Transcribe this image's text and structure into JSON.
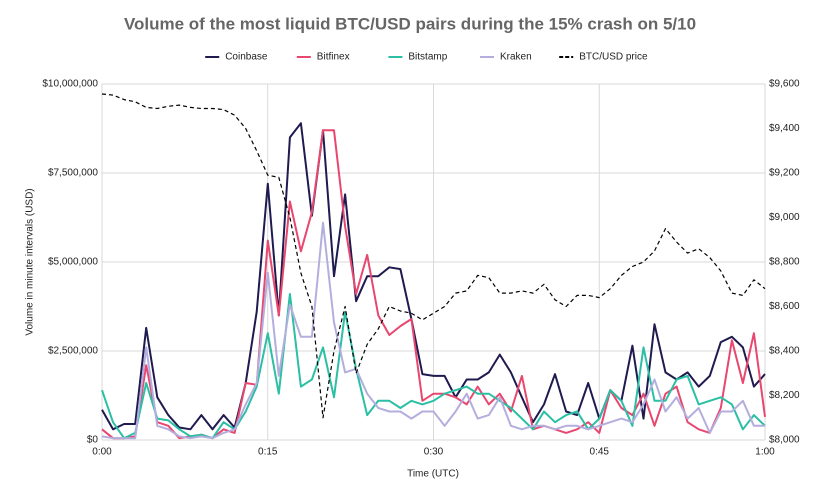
{
  "chart_data": {
    "type": "line",
    "title": "Volume of the most liquid BTC/USD pairs during the 15% crash on 5/10",
    "xlabel": "Time (UTC)",
    "ylabel": "Volume in minute intervals (USD)",
    "x": [
      0,
      1,
      2,
      3,
      4,
      5,
      6,
      7,
      8,
      9,
      10,
      11,
      12,
      13,
      14,
      15,
      16,
      17,
      18,
      19,
      20,
      21,
      22,
      23,
      24,
      25,
      26,
      27,
      28,
      29,
      30,
      31,
      32,
      33,
      34,
      35,
      36,
      37,
      38,
      39,
      40,
      41,
      42,
      43,
      44,
      45,
      46,
      47,
      48,
      49,
      50,
      51,
      52,
      53,
      54,
      55,
      56,
      57,
      58,
      59,
      60
    ],
    "xlim": [
      0,
      60
    ],
    "xticks": [
      {
        "value": 0,
        "label": "0:00"
      },
      {
        "value": 15,
        "label": "0:15"
      },
      {
        "value": 30,
        "label": "0:30"
      },
      {
        "value": 45,
        "label": "0:45"
      },
      {
        "value": 60,
        "label": "1:00"
      }
    ],
    "ylim": [
      0,
      10000000
    ],
    "yticks": [
      {
        "value": 0,
        "label": "$0"
      },
      {
        "value": 2500000,
        "label": "$2,500,000"
      },
      {
        "value": 5000000,
        "label": "$5,000,000"
      },
      {
        "value": 7500000,
        "label": "$7,500,000"
      },
      {
        "value": 10000000,
        "label": "$10,000,000"
      }
    ],
    "y2lim": [
      8000,
      9600
    ],
    "y2ticks": [
      {
        "value": 8000,
        "label": "$8,000"
      },
      {
        "value": 8200,
        "label": "$8,200"
      },
      {
        "value": 8400,
        "label": "$8,400"
      },
      {
        "value": 8600,
        "label": "$8,600"
      },
      {
        "value": 8800,
        "label": "$8,800"
      },
      {
        "value": 9000,
        "label": "$9,000"
      },
      {
        "value": 9200,
        "label": "$9,200"
      },
      {
        "value": 9400,
        "label": "$9,400"
      },
      {
        "value": 9600,
        "label": "$9,600"
      }
    ],
    "grid": true,
    "legend": "top",
    "series": [
      {
        "name": "Coinbase",
        "color": "#1f1a4f",
        "values": [
          850000,
          300000,
          450000,
          450000,
          3150000,
          1200000,
          700000,
          350000,
          300000,
          700000,
          300000,
          700000,
          350000,
          1600000,
          3600000,
          7200000,
          3500000,
          8500000,
          8900000,
          6300000,
          8700000,
          4600000,
          6900000,
          3900000,
          4600000,
          4600000,
          4850000,
          4800000,
          3400000,
          1850000,
          1800000,
          1800000,
          1200000,
          1700000,
          1700000,
          1900000,
          2400000,
          1900000,
          1200000,
          500000,
          1000000,
          1850000,
          800000,
          700000,
          1600000,
          600000,
          1400000,
          1100000,
          2650000,
          600000,
          3250000,
          1900000,
          1700000,
          1900000,
          1500000,
          1800000,
          2750000,
          2900000,
          2600000,
          1500000,
          1850000
        ]
      },
      {
        "name": "Bitfinex",
        "color": "#e8476f",
        "values": [
          300000,
          50000,
          50000,
          100000,
          2100000,
          500000,
          400000,
          50000,
          100000,
          150000,
          50000,
          300000,
          200000,
          1600000,
          1550000,
          5600000,
          3500000,
          6700000,
          5300000,
          6400000,
          8700000,
          8700000,
          6000000,
          4100000,
          5200000,
          3500000,
          2950000,
          3200000,
          3400000,
          1100000,
          1300000,
          1300000,
          1200000,
          1000000,
          1500000,
          1000000,
          1300000,
          800000,
          1800000,
          300000,
          400000,
          300000,
          200000,
          300000,
          500000,
          200000,
          1400000,
          900000,
          700000,
          1300000,
          400000,
          1300000,
          1500000,
          500000,
          300000,
          200000,
          900000,
          2800000,
          1600000,
          3000000,
          650000
        ]
      },
      {
        "name": "Bitstamp",
        "color": "#2bbfa4",
        "values": [
          1400000,
          500000,
          50000,
          200000,
          1600000,
          600000,
          550000,
          300000,
          100000,
          150000,
          50000,
          500000,
          300000,
          800000,
          1500000,
          3000000,
          1300000,
          4100000,
          1500000,
          1700000,
          2600000,
          1200000,
          3600000,
          2000000,
          700000,
          1100000,
          1100000,
          900000,
          1100000,
          1000000,
          1100000,
          1300000,
          1400000,
          1500000,
          1300000,
          1300000,
          1100000,
          900000,
          600000,
          300000,
          800000,
          500000,
          700000,
          800000,
          300000,
          600000,
          1400000,
          1100000,
          400000,
          2600000,
          1100000,
          1100000,
          1700000,
          1800000,
          1000000,
          1100000,
          1200000,
          1000000,
          300000,
          700000,
          400000
        ]
      },
      {
        "name": "Kraken",
        "color": "#b3aede",
        "values": [
          100000,
          50000,
          50000,
          50000,
          2600000,
          400000,
          300000,
          100000,
          50000,
          100000,
          50000,
          200000,
          300000,
          1000000,
          1600000,
          4700000,
          1800000,
          3800000,
          2900000,
          2900000,
          6100000,
          3300000,
          1900000,
          2000000,
          1300000,
          900000,
          800000,
          800000,
          600000,
          800000,
          800000,
          400000,
          800000,
          1300000,
          600000,
          700000,
          1200000,
          400000,
          300000,
          400000,
          400000,
          300000,
          400000,
          400000,
          300000,
          400000,
          500000,
          600000,
          500000,
          1000000,
          1700000,
          800000,
          1200000,
          600000,
          900000,
          200000,
          800000,
          800000,
          1100000,
          400000,
          400000
        ]
      },
      {
        "name": "BTC/USD price",
        "color": "#000000",
        "dashed": true,
        "axis": "y2",
        "values": [
          9555,
          9550,
          9530,
          9520,
          9495,
          9490,
          9500,
          9505,
          9495,
          9490,
          9490,
          9485,
          9460,
          9400,
          9300,
          9190,
          9180,
          9000,
          8750,
          8600,
          8100,
          8400,
          8600,
          8300,
          8430,
          8500,
          8600,
          8580,
          8570,
          8540,
          8570,
          8600,
          8660,
          8670,
          8740,
          8730,
          8660,
          8660,
          8670,
          8660,
          8700,
          8630,
          8600,
          8650,
          8650,
          8640,
          8680,
          8740,
          8780,
          8800,
          8850,
          8950,
          8890,
          8840,
          8860,
          8820,
          8760,
          8660,
          8650,
          8720,
          8680
        ]
      }
    ]
  }
}
